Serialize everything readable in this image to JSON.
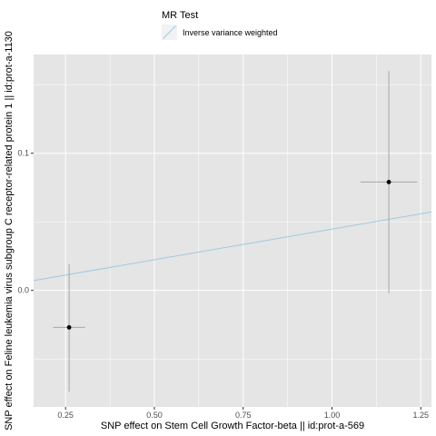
{
  "chart_data": {
    "type": "scatter",
    "xlabel": "SNP effect on Stem Cell Growth Factor-beta || id:prot-a-569",
    "ylabel": "SNP effect on Feline leukemia virus subgroup C receptor-related protein 1 || id:prot-a-1130",
    "xlim": [
      0.16,
      1.28
    ],
    "ylim": [
      -0.085,
      0.172
    ],
    "x_ticks": [
      0.25,
      0.5,
      0.75,
      1.0,
      1.25
    ],
    "x_tick_labels": [
      "0.25",
      "0.50",
      "0.75",
      "1.00",
      "1.25"
    ],
    "y_ticks": [
      0.0,
      0.1
    ],
    "y_tick_labels": [
      "0.0",
      "0.1"
    ],
    "grid": true,
    "legend": {
      "title": "MR Test",
      "position": "top",
      "entries": [
        {
          "label": "Inverse variance weighted",
          "color": "#9ecae1"
        }
      ]
    },
    "points": [
      {
        "x": 0.26,
        "y": -0.027,
        "x_low": 0.215,
        "x_high": 0.305,
        "y_low": -0.074,
        "y_high": 0.019
      },
      {
        "x": 1.16,
        "y": 0.079,
        "x_low": 1.08,
        "x_high": 1.24,
        "y_low": -0.002,
        "y_high": 0.16
      }
    ],
    "lines": [
      {
        "name": "Inverse variance weighted",
        "slope": 0.04468,
        "intercept": 0.0,
        "color": "#9ecae1"
      }
    ],
    "colors": {
      "panel": "#e5e5e5",
      "grid": "#ffffff",
      "errorbar": "#a6a6a6",
      "point": "#000000"
    }
  }
}
